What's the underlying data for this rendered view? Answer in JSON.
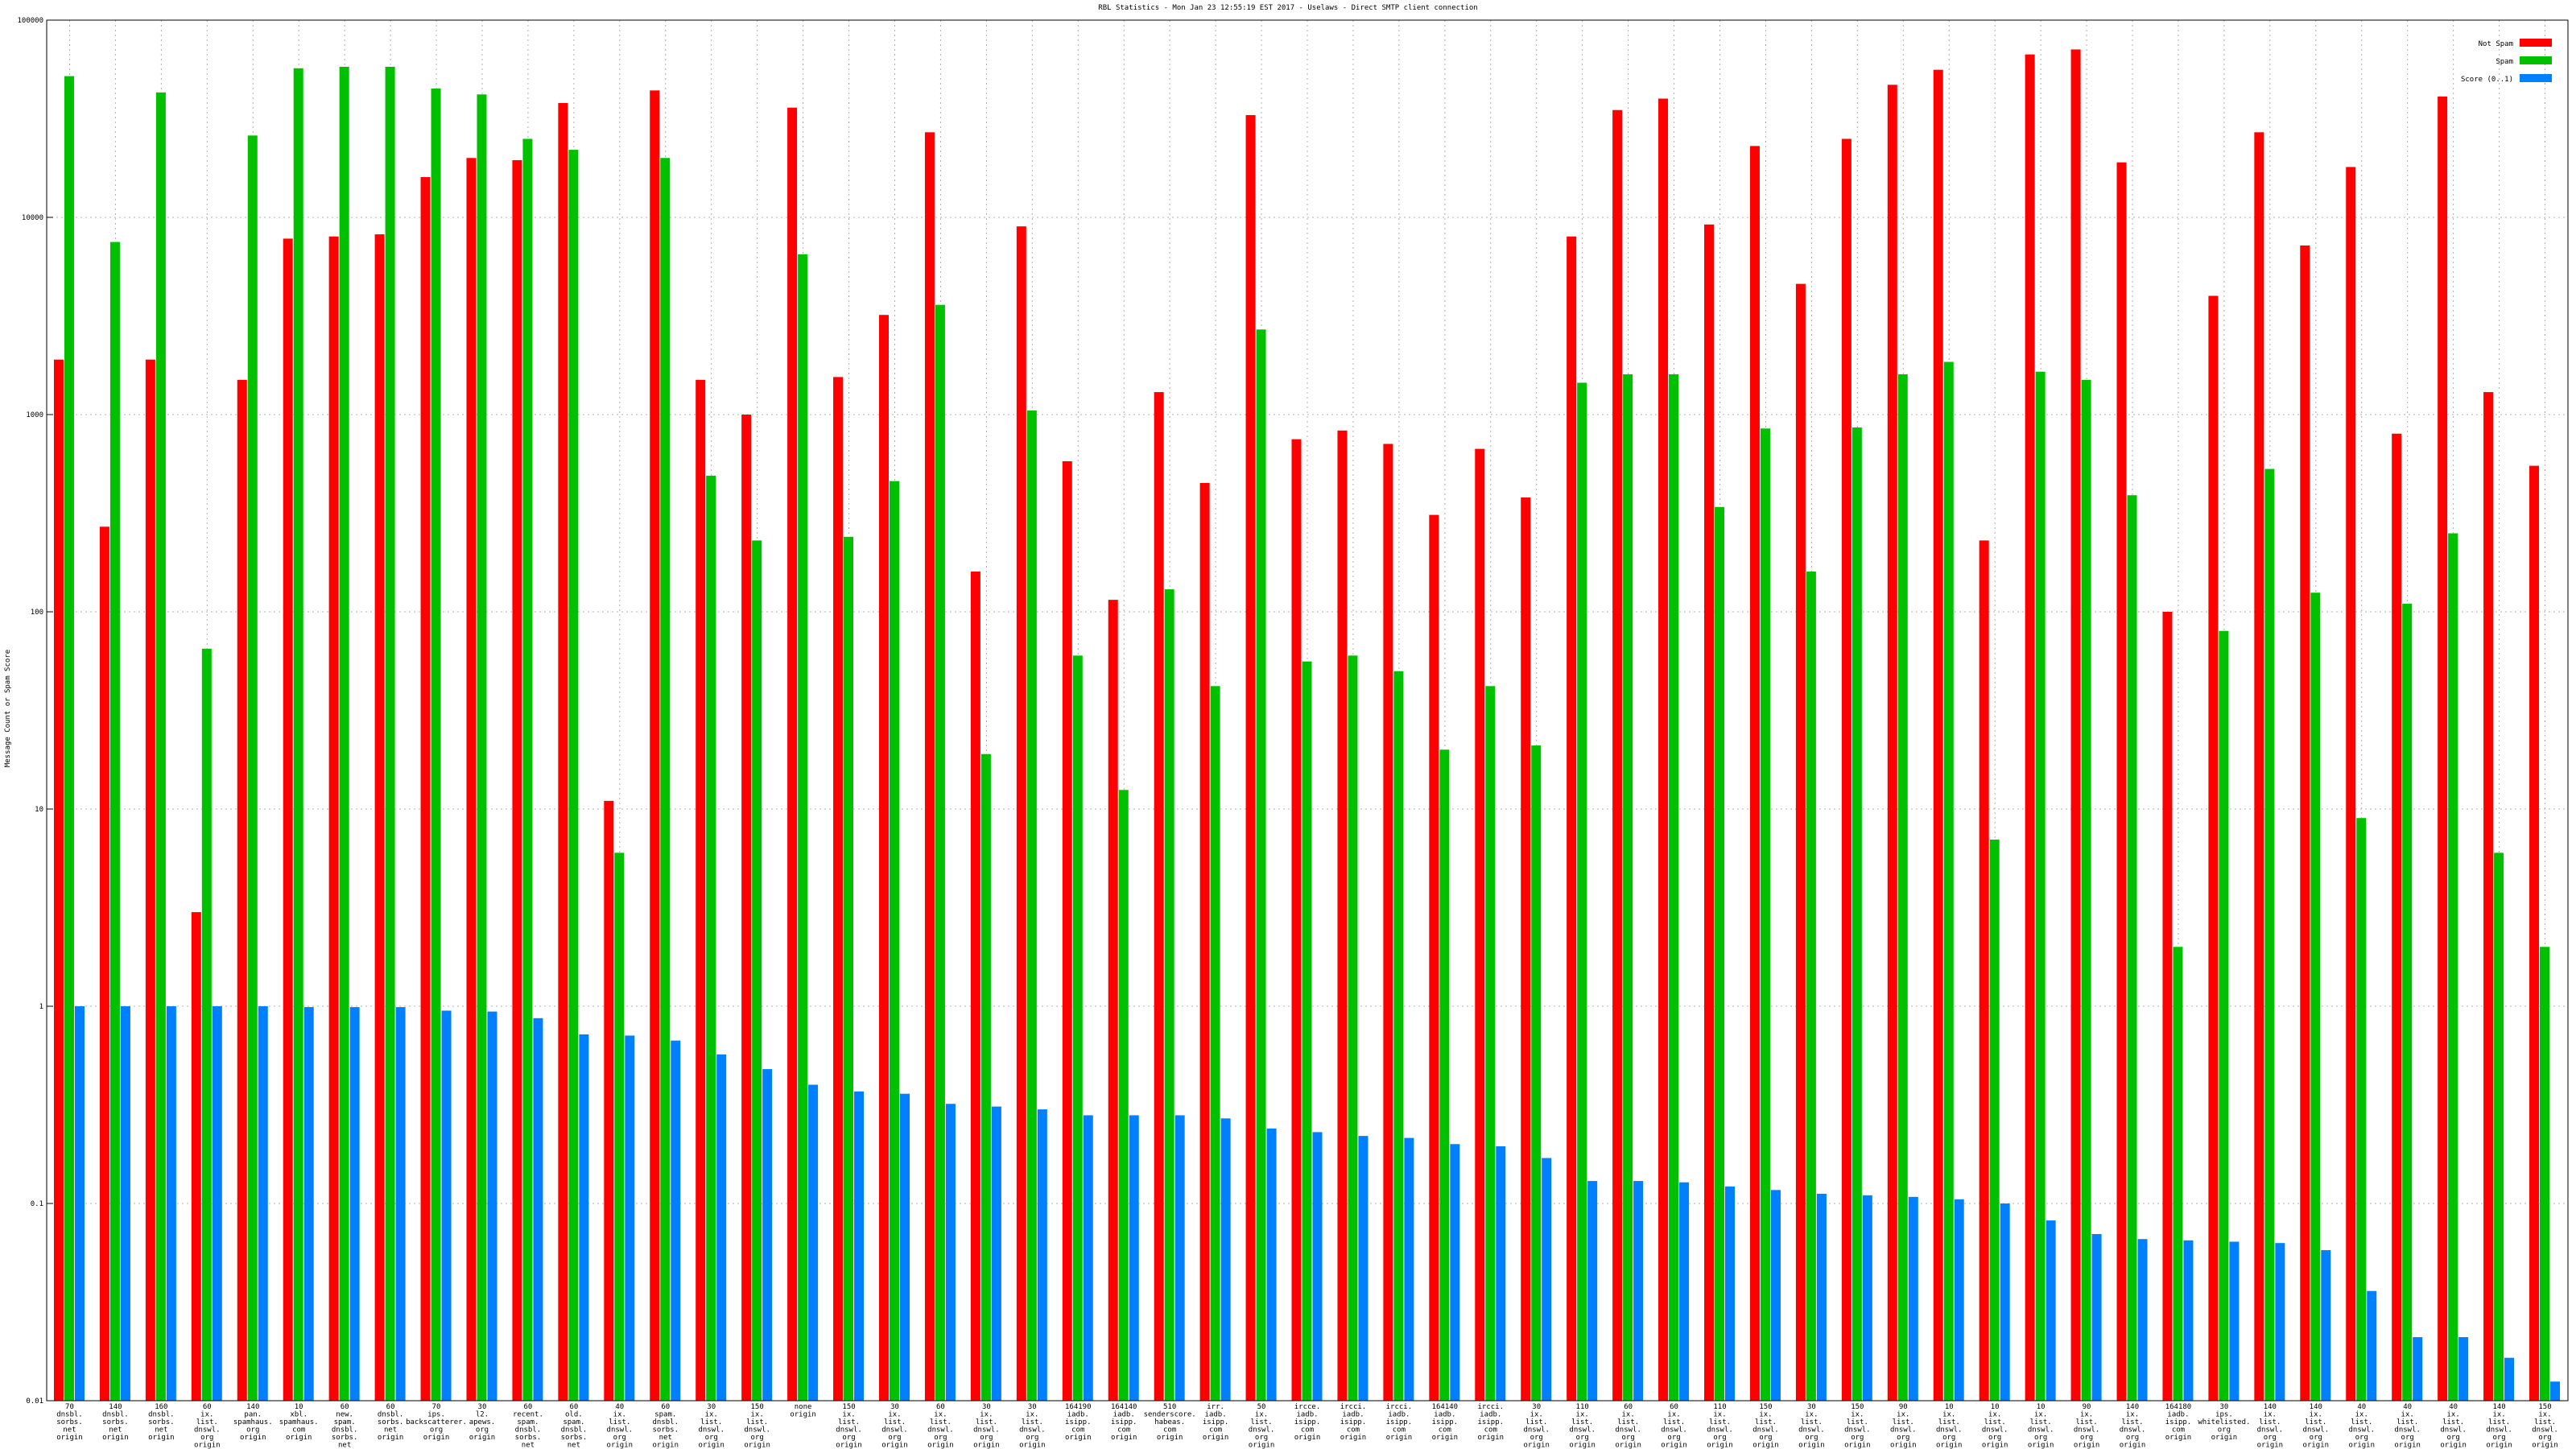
{
  "chart_data": {
    "type": "bar",
    "title": "RBL Statistics - Mon Jan 23 12:55:19 EST 2017 - Uselaws - Direct SMTP client connection",
    "y_label": "Message Count or Spam Score",
    "log_scale": true,
    "grid": true,
    "legend": "top-right",
    "ylim": [
      0.01,
      100000
    ],
    "yticks": [
      0.01,
      0.1,
      1,
      10,
      100,
      1000,
      10000,
      100000
    ],
    "categories": [
      [
        "70",
        "dnsbl.",
        "sorbs.",
        "net",
        "origin"
      ],
      [
        "140",
        "dnsbl.",
        "sorbs.",
        "net",
        "origin"
      ],
      [
        "160",
        "dnsbl.",
        "sorbs.",
        "net",
        "origin"
      ],
      [
        "60",
        "ix.",
        "list.",
        "dnswl.",
        "org",
        "origin"
      ],
      [
        "140",
        "pan.",
        "spamhaus.",
        "org",
        "origin"
      ],
      [
        "10",
        "xbl.",
        "spamhaus.",
        "com",
        "origin"
      ],
      [
        "60",
        "new.",
        "spam.",
        "dnsbl.",
        "sorbs.",
        "net",
        "origin"
      ],
      [
        "60",
        "dnsbl.",
        "sorbs.",
        "net",
        "origin"
      ],
      [
        "70",
        "ips.",
        "backscatterer.",
        "org",
        "origin"
      ],
      [
        "30",
        "l2.",
        "apews.",
        "org",
        "origin"
      ],
      [
        "60",
        "recent.",
        "spam.",
        "dnsbl.",
        "sorbs.",
        "net",
        "origin"
      ],
      [
        "60",
        "old.",
        "spam.",
        "dnsbl.",
        "sorbs.",
        "net",
        "origin"
      ],
      [
        "40",
        "ix.",
        "list.",
        "dnswl.",
        "org",
        "origin"
      ],
      [
        "60",
        "spam.",
        "dnsbl.",
        "sorbs.",
        "net",
        "origin"
      ],
      [
        "30",
        "ix.",
        "list.",
        "dnswl.",
        "org",
        "origin"
      ],
      [
        "150",
        "ix.",
        "list.",
        "dnswl.",
        "org",
        "origin"
      ],
      [
        "none",
        "origin"
      ],
      [
        "150",
        "ix.",
        "list.",
        "dnswl.",
        "org",
        "origin"
      ],
      [
        "30",
        "ix.",
        "list.",
        "dnswl.",
        "org",
        "origin"
      ],
      [
        "60",
        "ix.",
        "list.",
        "dnswl.",
        "org",
        "origin"
      ],
      [
        "30",
        "ix.",
        "list.",
        "dnswl.",
        "org",
        "origin"
      ],
      [
        "30",
        "ix.",
        "list.",
        "dnswl.",
        "org",
        "origin"
      ],
      [
        "164190",
        "iadb.",
        "isipp.",
        "com",
        "origin"
      ],
      [
        "164140",
        "iadb.",
        "isipp.",
        "com",
        "origin"
      ],
      [
        "510",
        "senderscore.",
        "habeas.",
        "com",
        "origin"
      ],
      [
        "irr.",
        "iadb.",
        "isipp.",
        "com",
        "origin"
      ],
      [
        "50",
        "ix.",
        "list.",
        "dnswl.",
        "org",
        "origin"
      ],
      [
        "ircce.",
        "iadb.",
        "isipp.",
        "com",
        "origin"
      ],
      [
        "ircci.",
        "iadb.",
        "isipp.",
        "com",
        "origin"
      ],
      [
        "ircci.",
        "iadb.",
        "isipp.",
        "com",
        "origin"
      ],
      [
        "164140",
        "iadb.",
        "isipp.",
        "com",
        "origin"
      ],
      [
        "ircci.",
        "iadb.",
        "isipp.",
        "com",
        "origin"
      ],
      [
        "30",
        "ix.",
        "list.",
        "dnswl.",
        "org",
        "origin"
      ],
      [
        "110",
        "ix.",
        "list.",
        "dnswl.",
        "org",
        "origin"
      ],
      [
        "60",
        "ix.",
        "list.",
        "dnswl.",
        "org",
        "origin"
      ],
      [
        "60",
        "ix.",
        "list.",
        "dnswl.",
        "org",
        "origin"
      ],
      [
        "110",
        "ix.",
        "list.",
        "dnswl.",
        "org",
        "origin"
      ],
      [
        "150",
        "ix.",
        "list.",
        "dnswl.",
        "org",
        "origin"
      ],
      [
        "30",
        "ix.",
        "list.",
        "dnswl.",
        "org",
        "origin"
      ],
      [
        "150",
        "ix.",
        "list.",
        "dnswl.",
        "org",
        "origin"
      ],
      [
        "90",
        "ix.",
        "list.",
        "dnswl.",
        "org",
        "origin"
      ],
      [
        "10",
        "ix.",
        "list.",
        "dnswl.",
        "org",
        "origin"
      ],
      [
        "10",
        "ix.",
        "list.",
        "dnswl.",
        "org",
        "origin"
      ],
      [
        "10",
        "ix.",
        "list.",
        "dnswl.",
        "org",
        "origin"
      ],
      [
        "90",
        "ix.",
        "list.",
        "dnswl.",
        "org",
        "origin"
      ],
      [
        "140",
        "ix.",
        "list.",
        "dnswl.",
        "org",
        "origin"
      ],
      [
        "164180",
        "iadb.",
        "isipp.",
        "com",
        "origin"
      ],
      [
        "30",
        "ips.",
        "whitelisted.",
        "org",
        "origin"
      ],
      [
        "140",
        "ix.",
        "list.",
        "dnswl.",
        "org",
        "origin"
      ],
      [
        "140",
        "ix.",
        "list.",
        "dnswl.",
        "org",
        "origin"
      ],
      [
        "40",
        "ix.",
        "list.",
        "dnswl.",
        "org",
        "origin"
      ],
      [
        "40",
        "ix.",
        "list.",
        "dnswl.",
        "org",
        "origin"
      ],
      [
        "40",
        "ix.",
        "list.",
        "dnswl.",
        "org",
        "origin"
      ],
      [
        "140",
        "ix.",
        "list.",
        "dnswl.",
        "org",
        "origin"
      ],
      [
        "150",
        "ix.",
        "list.",
        "dnswl.",
        "org",
        "origin"
      ]
    ],
    "series": [
      {
        "name": "Not Spam",
        "color": "#ff0000",
        "values": [
          1900,
          270,
          1900,
          3,
          1500,
          7800,
          8000,
          8200,
          16000,
          20000,
          19500,
          38000,
          11,
          44000,
          1500,
          1000,
          36000,
          1550,
          3200,
          27000,
          160,
          9000,
          580,
          115,
          1300,
          450,
          33000,
          750,
          830,
          710,
          310,
          670,
          380,
          8000,
          35000,
          40000,
          9200,
          23000,
          4600,
          25000,
          47000,
          56000,
          230,
          67000,
          71000,
          19000,
          100,
          4000,
          27000,
          7200,
          18000,
          800,
          41000,
          1300,
          550
        ]
      },
      {
        "name": "Spam",
        "color": "#00c000",
        "values": [
          52000,
          7500,
          43000,
          65,
          26000,
          57000,
          58000,
          58000,
          45000,
          42000,
          25000,
          22000,
          6,
          20000,
          490,
          230,
          6500,
          240,
          460,
          3600,
          19,
          1050,
          60,
          12.5,
          130,
          42,
          2700,
          56,
          60,
          50,
          20,
          42,
          21,
          1450,
          1600,
          1600,
          340,
          850,
          160,
          860,
          1600,
          1850,
          7,
          1650,
          1500,
          390,
          2,
          80,
          530,
          125,
          9,
          110,
          250,
          6,
          2
        ]
      },
      {
        "name": "Score (0..1)",
        "color": "#0080ff",
        "values": [
          1.0,
          1.0,
          1.0,
          1.0,
          1.0,
          0.99,
          0.99,
          0.99,
          0.95,
          0.94,
          0.87,
          0.72,
          0.71,
          0.67,
          0.57,
          0.48,
          0.4,
          0.37,
          0.36,
          0.32,
          0.31,
          0.3,
          0.28,
          0.28,
          0.28,
          0.27,
          0.24,
          0.23,
          0.22,
          0.215,
          0.2,
          0.195,
          0.17,
          0.13,
          0.13,
          0.128,
          0.122,
          0.117,
          0.112,
          0.11,
          0.108,
          0.105,
          0.1,
          0.082,
          0.07,
          0.066,
          0.065,
          0.064,
          0.063,
          0.058,
          0.036,
          0.021,
          0.021,
          0.0165,
          0.0125
        ]
      }
    ]
  }
}
